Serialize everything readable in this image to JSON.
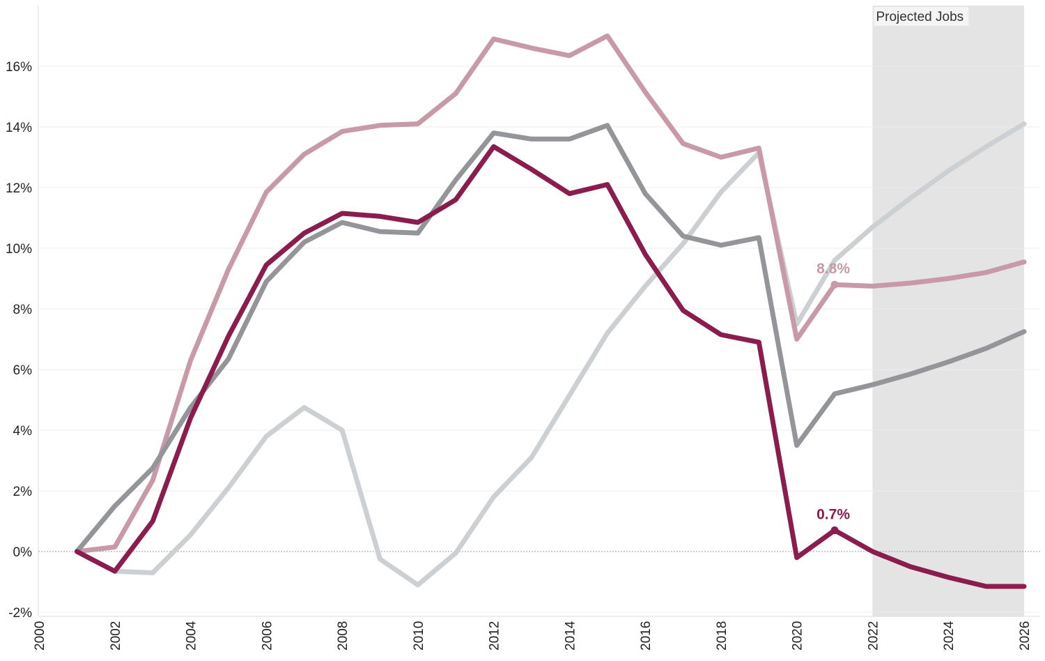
{
  "chart_data": {
    "type": "line",
    "title": "",
    "xlabel": "",
    "ylabel": "",
    "xlim": [
      2000,
      2026
    ],
    "ylim": [
      -2,
      17.5
    ],
    "x_ticks": [
      "2000",
      "2002",
      "2004",
      "2006",
      "2008",
      "2010",
      "2012",
      "2014",
      "2016",
      "2018",
      "2020",
      "2022",
      "2024",
      "2026"
    ],
    "y_ticks": [
      "-2%",
      "0%",
      "2%",
      "4%",
      "6%",
      "8%",
      "10%",
      "12%",
      "14%",
      "16%"
    ],
    "grid": true,
    "legend": "none",
    "projection": {
      "label": "Projected Jobs",
      "x_start": 2022,
      "x_end": 2026,
      "color": "#e4e4e4"
    },
    "x": [
      2001,
      2002,
      2003,
      2004,
      2005,
      2006,
      2007,
      2008,
      2009,
      2010,
      2011,
      2012,
      2013,
      2014,
      2015,
      2016,
      2017,
      2018,
      2019,
      2020,
      2021,
      2022,
      2023,
      2024,
      2025,
      2026
    ],
    "series": [
      {
        "color": "#cdd0d3",
        "values": [
          0,
          -0.65,
          -0.7,
          0.55,
          2.1,
          3.8,
          4.75,
          4.0,
          -0.25,
          -1.1,
          -0.05,
          1.8,
          3.1,
          5.15,
          7.2,
          8.75,
          10.15,
          11.85,
          13.15,
          7.5,
          9.6,
          10.7,
          11.65,
          12.55,
          13.35,
          14.1
        ]
      },
      {
        "color": "#c89aa7",
        "values": [
          0,
          0.15,
          2.35,
          6.3,
          9.3,
          11.85,
          13.1,
          13.85,
          14.05,
          14.1,
          15.1,
          16.9,
          16.6,
          16.35,
          17.0,
          15.15,
          13.45,
          13.0,
          13.3,
          7.0,
          8.8,
          8.75,
          8.85,
          9.0,
          9.2,
          9.55
        ]
      },
      {
        "color": "#939598",
        "values": [
          0,
          1.5,
          2.75,
          4.75,
          6.35,
          8.9,
          10.2,
          10.85,
          10.55,
          10.5,
          12.25,
          13.8,
          13.6,
          13.6,
          14.05,
          11.8,
          10.4,
          10.1,
          10.35,
          3.5,
          5.2,
          5.5,
          5.85,
          6.25,
          6.7,
          7.25
        ]
      },
      {
        "color": "#8a1c4e",
        "values": [
          0,
          -0.65,
          1.0,
          4.4,
          7.1,
          9.45,
          10.5,
          11.15,
          11.05,
          10.85,
          11.6,
          13.35,
          12.6,
          11.8,
          12.1,
          9.8,
          7.95,
          7.15,
          6.9,
          -0.2,
          0.7,
          0.0,
          -0.5,
          -0.85,
          -1.15,
          -1.15
        ]
      }
    ],
    "annotations": [
      {
        "text": "8.8%",
        "x": 2021,
        "y": 8.8,
        "color": "#c89aa7"
      },
      {
        "text": "0.7%",
        "x": 2021,
        "y": 0.7,
        "color": "#8a1c4e"
      }
    ]
  }
}
